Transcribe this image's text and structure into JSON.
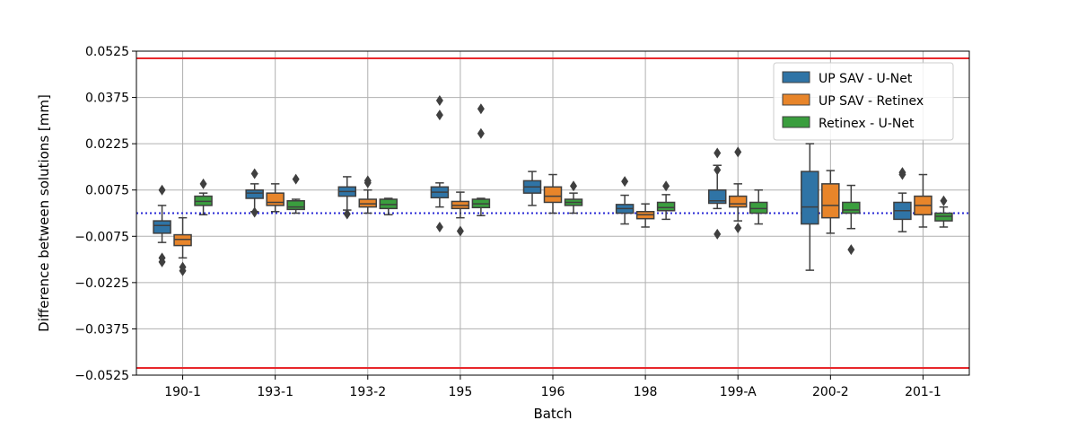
{
  "chart_data": {
    "type": "box",
    "xlabel": "Batch",
    "ylabel": "Difference between solutions [mm]",
    "ylim": [
      -0.0525,
      0.0525
    ],
    "yticks": [
      "0.0525",
      "0.0375",
      "0.0225",
      "0.0075",
      "-0.0075",
      "-0.0225",
      "-0.0375",
      "-0.0525"
    ],
    "ytick_values": [
      0.0525,
      0.0375,
      0.0225,
      0.0075,
      -0.0075,
      -0.0225,
      -0.0375,
      -0.0525
    ],
    "categories": [
      "190-1",
      "193-1",
      "193-2",
      "195",
      "196",
      "198",
      "199-A",
      "200-2",
      "201-1"
    ],
    "grid": true,
    "legend_position": "top-right",
    "tolerance_lines": {
      "upper": 0.0525,
      "lower": -0.0525,
      "color": "#e8272b"
    },
    "reference_line": {
      "y": 0.0,
      "color": "#2a2ad6",
      "style": "dotted"
    },
    "series": [
      {
        "name": "UP SAV - U-Net",
        "color": "#2f74a6",
        "boxes": [
          {
            "wlo": -0.0095,
            "q1": -0.0065,
            "med": -0.004,
            "q3": -0.0025,
            "whi": 0.0025,
            "outliers": [
              0.0075,
              -0.0145,
              -0.0158
            ]
          },
          {
            "wlo": 0.0005,
            "q1": 0.0048,
            "med": 0.0065,
            "q3": 0.0075,
            "whi": 0.0095,
            "outliers": [
              0.0128,
              0.0003
            ]
          },
          {
            "wlo": 0.001,
            "q1": 0.0055,
            "med": 0.007,
            "q3": 0.0085,
            "whi": 0.0118,
            "outliers": [
              -0.0003
            ]
          },
          {
            "wlo": 0.002,
            "q1": 0.005,
            "med": 0.0068,
            "q3": 0.0085,
            "whi": 0.0098,
            "outliers": [
              0.0365,
              0.0318,
              -0.0045
            ]
          },
          {
            "wlo": 0.0025,
            "q1": 0.0065,
            "med": 0.0085,
            "q3": 0.0105,
            "whi": 0.0135,
            "outliers": []
          },
          {
            "wlo": -0.0035,
            "q1": 0.0,
            "med": 0.0015,
            "q3": 0.0028,
            "whi": 0.0058,
            "outliers": [
              0.0103
            ]
          },
          {
            "wlo": 0.0015,
            "q1": 0.0032,
            "med": 0.004,
            "q3": 0.0075,
            "whi": 0.0155,
            "outliers": [
              0.0195,
              0.014,
              -0.0068
            ]
          },
          {
            "wlo": -0.0185,
            "q1": -0.0035,
            "med": 0.002,
            "q3": 0.0135,
            "whi": 0.0225,
            "outliers": []
          },
          {
            "wlo": -0.006,
            "q1": -0.002,
            "med": 0.0008,
            "q3": 0.0035,
            "whi": 0.0065,
            "outliers": [
              0.0125,
              0.0132
            ]
          }
        ]
      },
      {
        "name": "UP SAV - Retinex",
        "color": "#e8852a",
        "boxes": [
          {
            "wlo": -0.0145,
            "q1": -0.0105,
            "med": -0.0085,
            "q3": -0.007,
            "whi": -0.0015,
            "outliers": [
              -0.0175,
              -0.0187
            ]
          },
          {
            "wlo": 0.0005,
            "q1": 0.0025,
            "med": 0.0035,
            "q3": 0.0065,
            "whi": 0.0095,
            "outliers": []
          },
          {
            "wlo": 0.0,
            "q1": 0.002,
            "med": 0.003,
            "q3": 0.0045,
            "whi": 0.0075,
            "outliers": [
              0.0105,
              0.0098
            ]
          },
          {
            "wlo": -0.0015,
            "q1": 0.0015,
            "med": 0.0025,
            "q3": 0.0038,
            "whi": 0.0068,
            "outliers": [
              -0.0058
            ]
          },
          {
            "wlo": 0.0,
            "q1": 0.0035,
            "med": 0.0055,
            "q3": 0.0085,
            "whi": 0.0125,
            "outliers": []
          },
          {
            "wlo": -0.0045,
            "q1": -0.0018,
            "med": -0.0005,
            "q3": 0.0005,
            "whi": 0.003,
            "outliers": []
          },
          {
            "wlo": -0.0025,
            "q1": 0.002,
            "med": 0.003,
            "q3": 0.0055,
            "whi": 0.0095,
            "outliers": [
              0.0198,
              -0.0048
            ]
          },
          {
            "wlo": -0.0065,
            "q1": -0.0015,
            "med": 0.0025,
            "q3": 0.0095,
            "whi": 0.0138,
            "outliers": []
          },
          {
            "wlo": -0.0045,
            "q1": -0.0005,
            "med": 0.0025,
            "q3": 0.0055,
            "whi": 0.0125,
            "outliers": []
          }
        ]
      },
      {
        "name": "Retinex - U-Net",
        "color": "#3a9e3e",
        "boxes": [
          {
            "wlo": -0.0005,
            "q1": 0.0025,
            "med": 0.0038,
            "q3": 0.0055,
            "whi": 0.0065,
            "outliers": [
              0.0095
            ]
          },
          {
            "wlo": 0.0,
            "q1": 0.0012,
            "med": 0.002,
            "q3": 0.004,
            "whi": 0.0045,
            "outliers": [
              0.011
            ]
          },
          {
            "wlo": -0.0005,
            "q1": 0.0015,
            "med": 0.0028,
            "q3": 0.0045,
            "whi": 0.0048,
            "outliers": []
          },
          {
            "wlo": -0.0008,
            "q1": 0.0018,
            "med": 0.003,
            "q3": 0.0045,
            "whi": 0.0048,
            "outliers": [
              0.0338,
              0.0258
            ]
          },
          {
            "wlo": 0.0,
            "q1": 0.0025,
            "med": 0.0035,
            "q3": 0.0045,
            "whi": 0.0065,
            "outliers": [
              0.0088
            ]
          },
          {
            "wlo": -0.002,
            "q1": 0.0008,
            "med": 0.0018,
            "q3": 0.0035,
            "whi": 0.006,
            "outliers": [
              0.0088
            ]
          },
          {
            "wlo": -0.0035,
            "q1": 0.0,
            "med": 0.0015,
            "q3": 0.0035,
            "whi": 0.0075,
            "outliers": []
          },
          {
            "wlo": -0.005,
            "q1": 0.0,
            "med": 0.001,
            "q3": 0.0035,
            "whi": 0.009,
            "outliers": [
              -0.0118
            ]
          },
          {
            "wlo": -0.0045,
            "q1": -0.0025,
            "med": -0.001,
            "q3": 0.0,
            "whi": 0.002,
            "outliers": [
              0.004
            ]
          }
        ]
      }
    ]
  }
}
